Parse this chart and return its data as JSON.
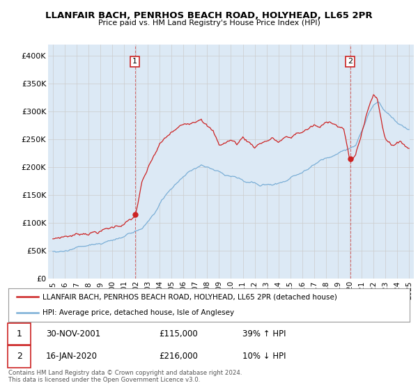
{
  "title": "LLANFAIR BACH, PENRHOS BEACH ROAD, HOLYHEAD, LL65 2PR",
  "subtitle": "Price paid vs. HM Land Registry's House Price Index (HPI)",
  "ylabel_ticks": [
    "£0",
    "£50K",
    "£100K",
    "£150K",
    "£200K",
    "£250K",
    "£300K",
    "£350K",
    "£400K"
  ],
  "ytick_values": [
    0,
    50000,
    100000,
    150000,
    200000,
    250000,
    300000,
    350000,
    400000
  ],
  "ylim": [
    0,
    420000
  ],
  "legend_line1": "LLANFAIR BACH, PENRHOS BEACH ROAD, HOLYHEAD, LL65 2PR (detached house)",
  "legend_line2": "HPI: Average price, detached house, Isle of Anglesey",
  "point1_date": "30-NOV-2001",
  "point1_price": "£115,000",
  "point1_hpi": "39% ↑ HPI",
  "point2_date": "16-JAN-2020",
  "point2_price": "£216,000",
  "point2_hpi": "10% ↓ HPI",
  "footer": "Contains HM Land Registry data © Crown copyright and database right 2024.\nThis data is licensed under the Open Government Licence v3.0.",
  "red_color": "#cc2222",
  "blue_color": "#7aaed6",
  "fill_color": "#dce9f5",
  "bg_color": "#ffffff",
  "grid_color": "#cccccc",
  "point1_year": 2001.917,
  "point2_year": 2020.042,
  "point1_price_val": 115000,
  "point2_price_val": 216000
}
